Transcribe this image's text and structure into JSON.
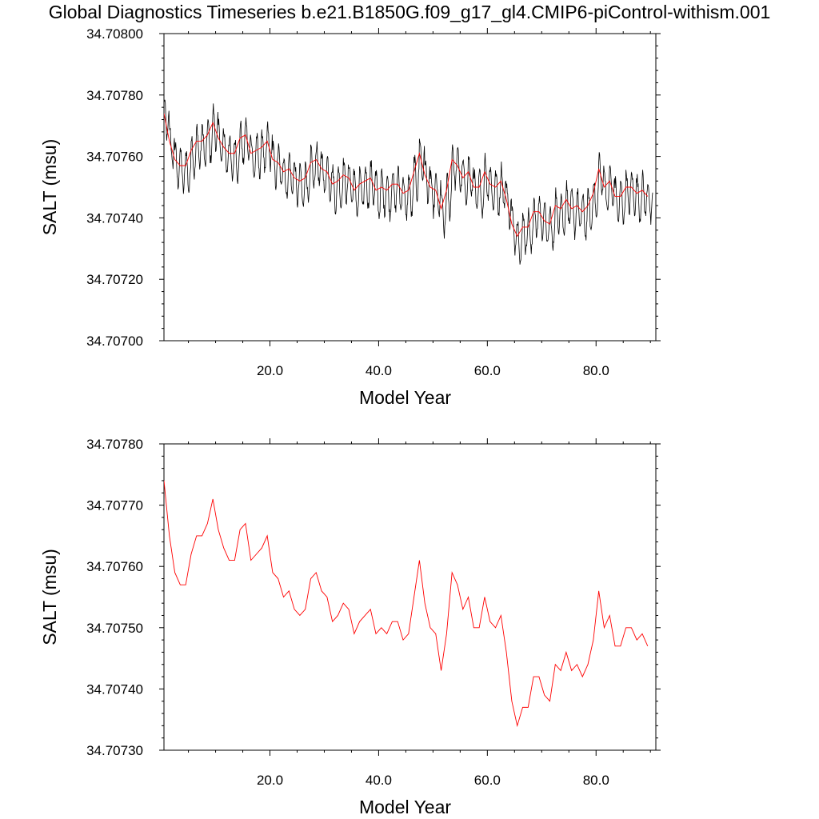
{
  "page": {
    "title": "Global Diagnostics Timeseries b.e21.B1850G.f09_g17_gl4.CMIP6-piControl-withism.001"
  },
  "chart_data": [
    {
      "type": "line",
      "xlabel": "Model Year",
      "ylabel": "SALT (msu)",
      "xlim": [
        0.5,
        91
      ],
      "ylim": [
        34.707,
        34.708
      ],
      "xticks": [
        20,
        40,
        60,
        80
      ],
      "xtick_labels": [
        "20.0",
        "40.0",
        "60.0",
        "80.0"
      ],
      "yticks": [
        34.707,
        34.7072,
        34.7074,
        34.7076,
        34.7078,
        34.708
      ],
      "ytick_labels": [
        "34.70700",
        "34.70720",
        "34.70740",
        "34.70760",
        "34.70780",
        "34.70800"
      ],
      "series": [
        {
          "kind": "monthly",
          "color": "#000000",
          "x_start": 0.5,
          "x_step": 0.08333,
          "annual_means": [
            34.70774,
            34.70765,
            34.70759,
            34.70757,
            34.70757,
            34.70762,
            34.70765,
            34.70765,
            34.70767,
            34.70771,
            34.70766,
            34.70763,
            34.70761,
            34.70761,
            34.70766,
            34.70767,
            34.70761,
            34.70762,
            34.70763,
            34.70765,
            34.70759,
            34.70758,
            34.70755,
            34.70756,
            34.70753,
            34.70752,
            34.70753,
            34.70758,
            34.70759,
            34.70756,
            34.70755,
            34.70751,
            34.70752,
            34.70754,
            34.70753,
            34.70749,
            34.70751,
            34.70752,
            34.70753,
            34.70749,
            34.7075,
            34.70749,
            34.70751,
            34.70751,
            34.70748,
            34.70749,
            34.70755,
            34.70761,
            34.70754,
            34.7075,
            34.70749,
            34.70743,
            34.70749,
            34.70759,
            34.70757,
            34.70753,
            34.70755,
            34.7075,
            34.7075,
            34.70755,
            34.70751,
            34.7075,
            34.70752,
            34.70746,
            34.70738,
            34.70734,
            34.70737,
            34.70737,
            34.70742,
            34.70742,
            34.70739,
            34.70738,
            34.70744,
            34.70743,
            34.70746,
            34.70743,
            34.70744,
            34.70742,
            34.70744,
            34.70748,
            34.70756,
            34.7075,
            34.70752,
            34.70747,
            34.70747,
            34.7075,
            34.7075,
            34.70748,
            34.70749,
            34.70747
          ],
          "seasonal_amplitude": 0.00012,
          "noise": 2e-05
        },
        {
          "kind": "annual",
          "color": "#ff0000",
          "x": [
            0.5,
            1.5,
            2.5,
            3.5,
            4.5,
            5.5,
            6.5,
            7.5,
            8.5,
            9.5,
            10.5,
            11.5,
            12.5,
            13.5,
            14.5,
            15.5,
            16.5,
            17.5,
            18.5,
            19.5,
            20.5,
            21.5,
            22.5,
            23.5,
            24.5,
            25.5,
            26.5,
            27.5,
            28.5,
            29.5,
            30.5,
            31.5,
            32.5,
            33.5,
            34.5,
            35.5,
            36.5,
            37.5,
            38.5,
            39.5,
            40.5,
            41.5,
            42.5,
            43.5,
            44.5,
            45.5,
            46.5,
            47.5,
            48.5,
            49.5,
            50.5,
            51.5,
            52.5,
            53.5,
            54.5,
            55.5,
            56.5,
            57.5,
            58.5,
            59.5,
            60.5,
            61.5,
            62.5,
            63.5,
            64.5,
            65.5,
            66.5,
            67.5,
            68.5,
            69.5,
            70.5,
            71.5,
            72.5,
            73.5,
            74.5,
            75.5,
            76.5,
            77.5,
            78.5,
            79.5,
            80.5,
            81.5,
            82.5,
            83.5,
            84.5,
            85.5,
            86.5,
            87.5,
            88.5,
            89.5
          ],
          "y": [
            34.70774,
            34.70765,
            34.70759,
            34.70757,
            34.70757,
            34.70762,
            34.70765,
            34.70765,
            34.70767,
            34.70771,
            34.70766,
            34.70763,
            34.70761,
            34.70761,
            34.70766,
            34.70767,
            34.70761,
            34.70762,
            34.70763,
            34.70765,
            34.70759,
            34.70758,
            34.70755,
            34.70756,
            34.70753,
            34.70752,
            34.70753,
            34.70758,
            34.70759,
            34.70756,
            34.70755,
            34.70751,
            34.70752,
            34.70754,
            34.70753,
            34.70749,
            34.70751,
            34.70752,
            34.70753,
            34.70749,
            34.7075,
            34.70749,
            34.70751,
            34.70751,
            34.70748,
            34.70749,
            34.70755,
            34.70761,
            34.70754,
            34.7075,
            34.70749,
            34.70743,
            34.70749,
            34.70759,
            34.70757,
            34.70753,
            34.70755,
            34.7075,
            34.7075,
            34.70755,
            34.70751,
            34.7075,
            34.70752,
            34.70746,
            34.70738,
            34.70734,
            34.70737,
            34.70737,
            34.70742,
            34.70742,
            34.70739,
            34.70738,
            34.70744,
            34.70743,
            34.70746,
            34.70743,
            34.70744,
            34.70742,
            34.70744,
            34.70748,
            34.70756,
            34.7075,
            34.70752,
            34.70747,
            34.70747,
            34.7075,
            34.7075,
            34.70748,
            34.70749,
            34.70747
          ]
        }
      ]
    },
    {
      "type": "line",
      "xlabel": "Model Year",
      "ylabel": "SALT (msu)",
      "xlim": [
        0.5,
        91
      ],
      "ylim": [
        34.7073,
        34.7078
      ],
      "xticks": [
        20,
        40,
        60,
        80
      ],
      "xtick_labels": [
        "20.0",
        "40.0",
        "60.0",
        "80.0"
      ],
      "yticks": [
        34.7073,
        34.7074,
        34.7075,
        34.7076,
        34.7077,
        34.7078
      ],
      "ytick_labels": [
        "34.70730",
        "34.70740",
        "34.70750",
        "34.70760",
        "34.70770",
        "34.70780"
      ],
      "series": [
        {
          "kind": "annual",
          "color": "#ff0000",
          "x": [
            0.5,
            1.5,
            2.5,
            3.5,
            4.5,
            5.5,
            6.5,
            7.5,
            8.5,
            9.5,
            10.5,
            11.5,
            12.5,
            13.5,
            14.5,
            15.5,
            16.5,
            17.5,
            18.5,
            19.5,
            20.5,
            21.5,
            22.5,
            23.5,
            24.5,
            25.5,
            26.5,
            27.5,
            28.5,
            29.5,
            30.5,
            31.5,
            32.5,
            33.5,
            34.5,
            35.5,
            36.5,
            37.5,
            38.5,
            39.5,
            40.5,
            41.5,
            42.5,
            43.5,
            44.5,
            45.5,
            46.5,
            47.5,
            48.5,
            49.5,
            50.5,
            51.5,
            52.5,
            53.5,
            54.5,
            55.5,
            56.5,
            57.5,
            58.5,
            59.5,
            60.5,
            61.5,
            62.5,
            63.5,
            64.5,
            65.5,
            66.5,
            67.5,
            68.5,
            69.5,
            70.5,
            71.5,
            72.5,
            73.5,
            74.5,
            75.5,
            76.5,
            77.5,
            78.5,
            79.5,
            80.5,
            81.5,
            82.5,
            83.5,
            84.5,
            85.5,
            86.5,
            87.5,
            88.5,
            89.5
          ],
          "y": [
            34.70774,
            34.70765,
            34.70759,
            34.70757,
            34.70757,
            34.70762,
            34.70765,
            34.70765,
            34.70767,
            34.70771,
            34.70766,
            34.70763,
            34.70761,
            34.70761,
            34.70766,
            34.70767,
            34.70761,
            34.70762,
            34.70763,
            34.70765,
            34.70759,
            34.70758,
            34.70755,
            34.70756,
            34.70753,
            34.70752,
            34.70753,
            34.70758,
            34.70759,
            34.70756,
            34.70755,
            34.70751,
            34.70752,
            34.70754,
            34.70753,
            34.70749,
            34.70751,
            34.70752,
            34.70753,
            34.70749,
            34.7075,
            34.70749,
            34.70751,
            34.70751,
            34.70748,
            34.70749,
            34.70755,
            34.70761,
            34.70754,
            34.7075,
            34.70749,
            34.70743,
            34.70749,
            34.70759,
            34.70757,
            34.70753,
            34.70755,
            34.7075,
            34.7075,
            34.70755,
            34.70751,
            34.7075,
            34.70752,
            34.70746,
            34.70738,
            34.70734,
            34.70737,
            34.70737,
            34.70742,
            34.70742,
            34.70739,
            34.70738,
            34.70744,
            34.70743,
            34.70746,
            34.70743,
            34.70744,
            34.70742,
            34.70744,
            34.70748,
            34.70756,
            34.7075,
            34.70752,
            34.70747,
            34.70747,
            34.7075,
            34.7075,
            34.70748,
            34.70749,
            34.70747
          ]
        }
      ]
    }
  ]
}
